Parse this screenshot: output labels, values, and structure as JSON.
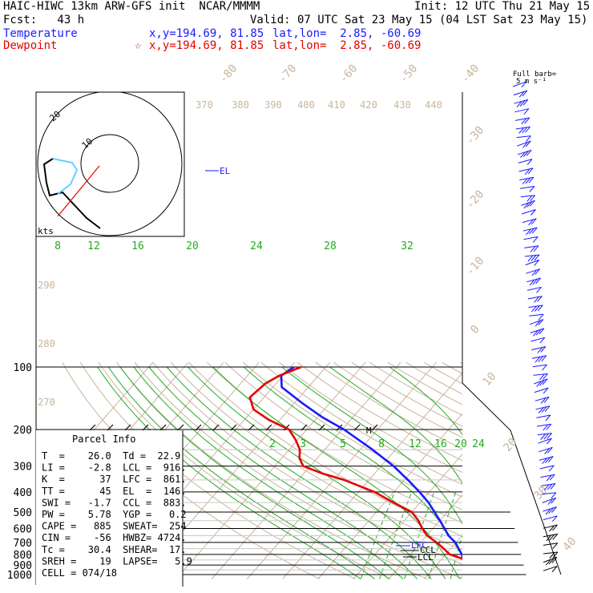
{
  "header": {
    "line1_left": "HAIC-HIWC 13km ARW-GFS init  NCAR/MMMM",
    "line1_right": "Init: 12 UTC Thu 21 May 15",
    "line2_left": "Fcst:   43 h",
    "line2_right": "Valid: 07 UTC Sat 23 May 15 (04 LST Sat 23 May 15)",
    "temp_label": "Temperature",
    "temp_xy": "x,y=194.69, 81.85",
    "temp_latlon": "lat,lon=  2.85, -60.69",
    "dew_label": "Dewpoint",
    "dew_star": "☆",
    "dew_xy": "x,y=194.69, 81.85",
    "dew_latlon": "lat,lon=  2.85, -60.69",
    "colors": {
      "temperature": "#1a1aff",
      "dewpoint": "#e60000",
      "theta": "#c8b49c",
      "mixing": "#22aa22"
    }
  },
  "chart_data": {
    "type": "line",
    "title": "",
    "y_axis": "pressure (hPa)",
    "pressure_labels": [
      "100",
      "200",
      "300",
      "400",
      "500",
      "600",
      "700",
      "800",
      "900",
      "1000"
    ],
    "isotherm_labels": [
      "-80",
      "-70",
      "-60",
      "-50",
      "-40",
      "-30",
      "-20",
      "-10",
      "0",
      "10",
      "20",
      "30",
      "40"
    ],
    "theta_labels": [
      "370",
      "380",
      "390",
      "400",
      "410",
      "420",
      "430",
      "440",
      "290",
      "280",
      "270"
    ],
    "mixing_ratio_labels_upper": [
      "8",
      "12",
      "16",
      "20",
      "24",
      "28",
      "32"
    ],
    "mixing_ratio_labels_lower": [
      "2",
      "3",
      "5",
      "8",
      "12",
      "16",
      "20",
      "24"
    ],
    "series": [
      {
        "name": "Temperature",
        "points": [
          [
            1000,
            26.0
          ],
          [
            975,
            24.2
          ],
          [
            950,
            22.6
          ],
          [
            925,
            21.0
          ],
          [
            900,
            19.2
          ],
          [
            850,
            16.3
          ],
          [
            800,
            14.6
          ],
          [
            750,
            12.2
          ],
          [
            700,
            9.8
          ],
          [
            650,
            6.2
          ],
          [
            600,
            3.3
          ],
          [
            550,
            0.1
          ],
          [
            500,
            -3.6
          ],
          [
            450,
            -7.6
          ],
          [
            400,
            -12.8
          ],
          [
            350,
            -19.0
          ],
          [
            300,
            -26.5
          ],
          [
            250,
            -36.5
          ],
          [
            200,
            -49.5
          ],
          [
            175,
            -58.5
          ],
          [
            150,
            -67.5
          ],
          [
            125,
            -77.5
          ],
          [
            110,
            -80.5
          ],
          [
            100,
            -79.0
          ]
        ]
      },
      {
        "name": "Dewpoint",
        "points": [
          [
            1000,
            22.9
          ],
          [
            950,
            20.5
          ],
          [
            925,
            19.8
          ],
          [
            900,
            18.9
          ],
          [
            875,
            18.4
          ],
          [
            850,
            17.2
          ],
          [
            825,
            14.2
          ],
          [
            800,
            11.2
          ],
          [
            750,
            8.0
          ],
          [
            700,
            4.5
          ],
          [
            650,
            0.2
          ],
          [
            600,
            -3.0
          ],
          [
            550,
            -6.0
          ],
          [
            500,
            -10.0
          ],
          [
            450,
            -17.5
          ],
          [
            400,
            -25.5
          ],
          [
            350,
            -37.0
          ],
          [
            325,
            -45.0
          ],
          [
            300,
            -52.0
          ],
          [
            275,
            -55.0
          ],
          [
            250,
            -57.0
          ],
          [
            225,
            -60.5
          ],
          [
            200,
            -65.0
          ],
          [
            180,
            -73.0
          ],
          [
            160,
            -80.0
          ],
          [
            140,
            -84.0
          ],
          [
            120,
            -83.0
          ],
          [
            110,
            -81.0
          ],
          [
            100,
            -77.0
          ]
        ]
      }
    ],
    "markers": [
      "EL",
      "LFC",
      "CCL",
      "LCL",
      "M"
    ],
    "hodograph": {
      "units_label": "kts",
      "ring_labels": [
        "10",
        "20"
      ]
    },
    "wind_legend": {
      "title": "Full barb=",
      "value": "5 m s⁻¹"
    }
  },
  "parcel_info": {
    "title": "Parcel Info",
    "rows": [
      "T  =    26.0  Td =  22.9",
      "LI =    -2.8  LCL =  916.",
      "K  =      37  LFC =  861.",
      "TT =      45  EL  =  146.",
      "SWI =   -1.7  CCL =  883.",
      "PW =    5.78  YGP =   0.2",
      "CAPE =   885  SWEAT=  254",
      "CIN =    -56  HWBZ= 4724.",
      "Tc =    30.4  SHEAR=  17.",
      "SREH =    19  LAPSE=   5.9",
      "CELL = 074/18"
    ]
  }
}
